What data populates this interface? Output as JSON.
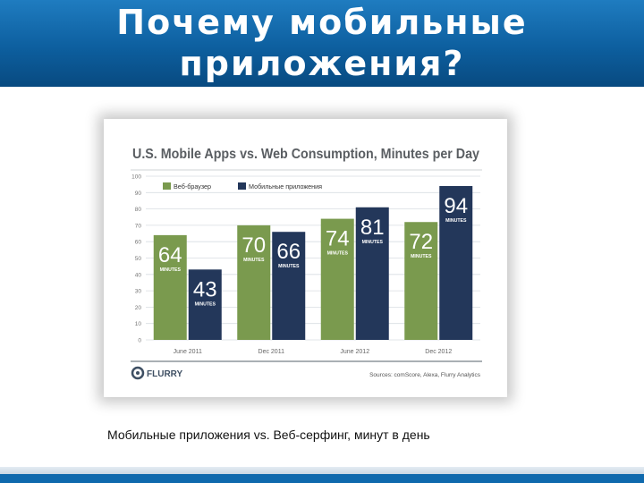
{
  "slide": {
    "title_line1": "Почему мобильные",
    "title_line2": "приложения?",
    "caption": "Мобильные приложения vs. Веб-серфинг, минут в день"
  },
  "colors": {
    "header": "#0d5f9f",
    "web": "#7a9a4e",
    "apps": "#23375a",
    "grid": "#d8dde2"
  },
  "chart_data": {
    "type": "bar",
    "title": "U.S. Mobile Apps vs. Web Consumption, Minutes per Day",
    "categories": [
      "June 2011",
      "Dec 2011",
      "June 2012",
      "Dec 2012"
    ],
    "series": [
      {
        "name": "Веб-браузер",
        "values": [
          64,
          70,
          74,
          72
        ]
      },
      {
        "name": "Мобильные приложения",
        "values": [
          43,
          66,
          81,
          94
        ]
      }
    ],
    "value_unit_label": "MINUTES",
    "yticks": [
      0,
      10,
      20,
      30,
      40,
      50,
      60,
      70,
      80,
      90,
      100
    ],
    "ylim": [
      0,
      100
    ],
    "grid": true,
    "legend_placement": "top-left",
    "brand": "FLURRY",
    "source": "Sources: comScore, Alexa, Flurry Analytics"
  }
}
